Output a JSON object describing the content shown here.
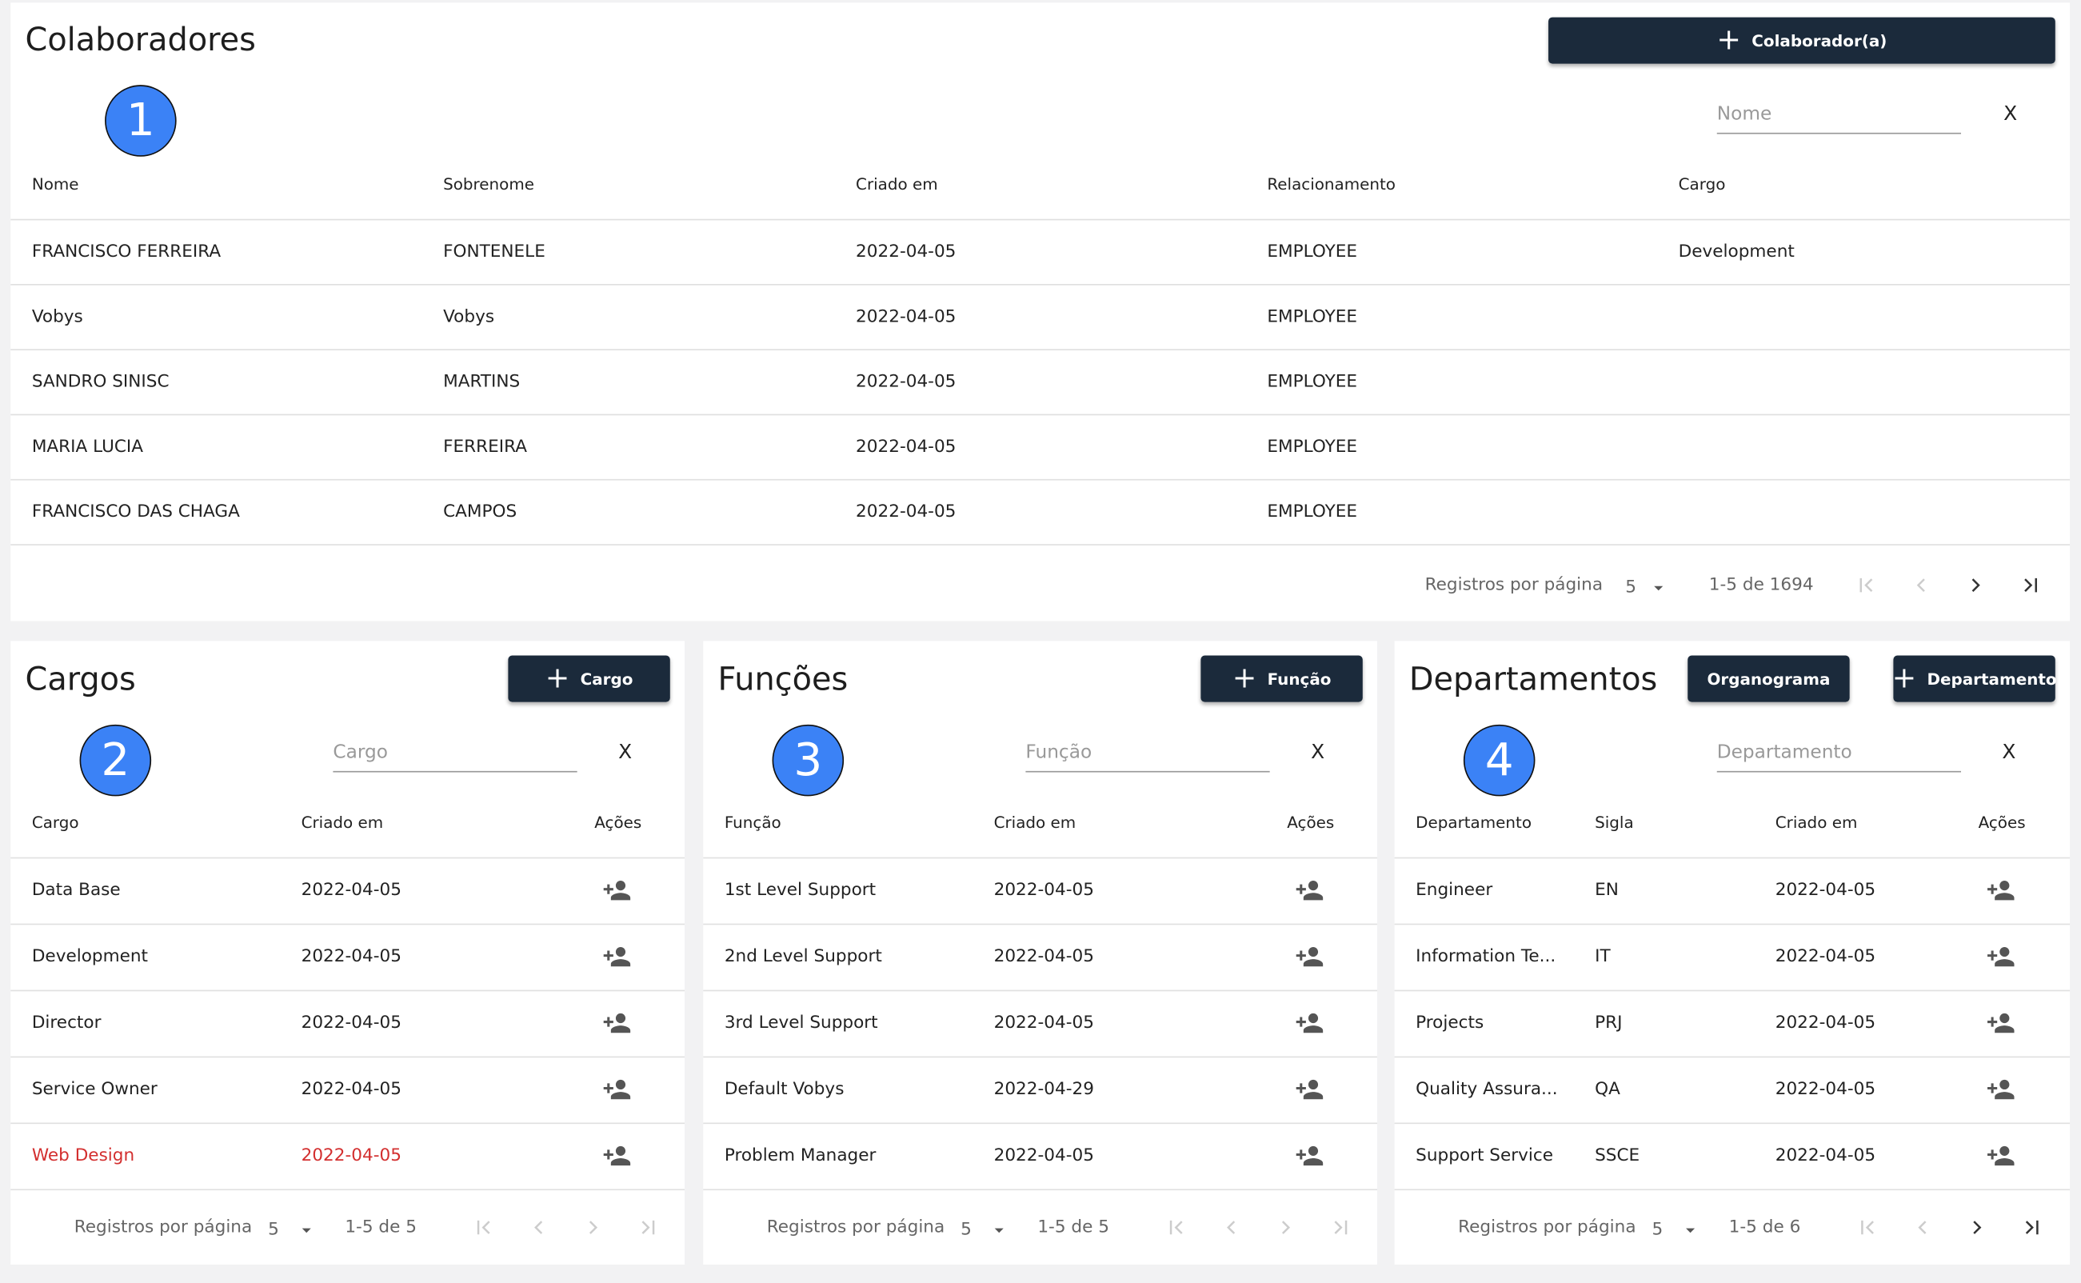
{
  "colaboradores": {
    "title": "Colaboradores",
    "button": "Colaborador(a)",
    "badge": "1",
    "filter_placeholder": "Nome",
    "clear": "X",
    "columns": [
      "Nome",
      "Sobrenome",
      "Criado em",
      "Relacionamento",
      "Cargo"
    ],
    "rows": [
      [
        "FRANCISCO FERREIRA",
        "FONTENELE",
        "2022-04-05",
        "EMPLOYEE",
        "Development"
      ],
      [
        "Vobys",
        "Vobys",
        "2022-04-05",
        "EMPLOYEE"
      ],
      [
        "SANDRO SINISC",
        "MARTINS",
        "2022-04-05",
        "EMPLOYEE"
      ],
      [
        "MARIA LUCIA",
        "FERREIRA",
        "2022-04-05",
        "EMPLOYEE"
      ],
      [
        "FRANCISCO DAS CHAGA",
        "CAMPOS",
        "2022-04-05",
        "EMPLOYEE"
      ]
    ],
    "pagination": {
      "label": "Registros por página",
      "per_page": "5",
      "range": "1-5 de 1694"
    }
  },
  "cargos": {
    "title": "Cargos",
    "button": "Cargo",
    "badge": "2",
    "filter_placeholder": "Cargo",
    "clear": "X",
    "columns": [
      "Cargo",
      "Criado em",
      "Ações"
    ],
    "rows": [
      [
        "Data Base",
        "2022-04-05"
      ],
      [
        "Development",
        "2022-04-05"
      ],
      [
        "Director",
        "2022-04-05"
      ],
      [
        "Service Owner",
        "2022-04-05"
      ],
      [
        "Web Design",
        "2022-04-05"
      ]
    ],
    "pagination": {
      "label": "Registros por página",
      "per_page": "5",
      "range": "1-5 de 5"
    }
  },
  "funcoes": {
    "title": "Funções",
    "button": "Função",
    "badge": "3",
    "filter_placeholder": "Função",
    "clear": "X",
    "columns": [
      "Função",
      "Criado em",
      "Ações"
    ],
    "rows": [
      [
        "1st Level Support",
        "2022-04-05"
      ],
      [
        "2nd Level Support",
        "2022-04-05"
      ],
      [
        "3rd Level Support",
        "2022-04-05"
      ],
      [
        "Default Vobys",
        "2022-04-29"
      ],
      [
        "Problem Manager",
        "2022-04-05"
      ]
    ],
    "pagination": {
      "label": "Registros por página",
      "per_page": "5",
      "range": "1-5 de 5"
    }
  },
  "departamentos": {
    "title": "Departamentos",
    "button": "Departamento",
    "secondary_button": "Organograma",
    "badge": "4",
    "filter_placeholder": "Departamento",
    "clear": "X",
    "columns": [
      "Departamento",
      "Sigla",
      "Criado em",
      "Ações"
    ],
    "rows": [
      [
        "Engineer",
        "EN",
        "2022-04-05"
      ],
      [
        "Information Te...",
        "IT",
        "2022-04-05"
      ],
      [
        "Projects",
        "PRJ",
        "2022-04-05"
      ],
      [
        "Quality Assura...",
        "QA",
        "2022-04-05"
      ],
      [
        "Support Service",
        "SSCE",
        "2022-04-05"
      ]
    ],
    "pagination": {
      "label": "Registros por página",
      "per_page": "5",
      "range": "1-5 de 6"
    }
  }
}
